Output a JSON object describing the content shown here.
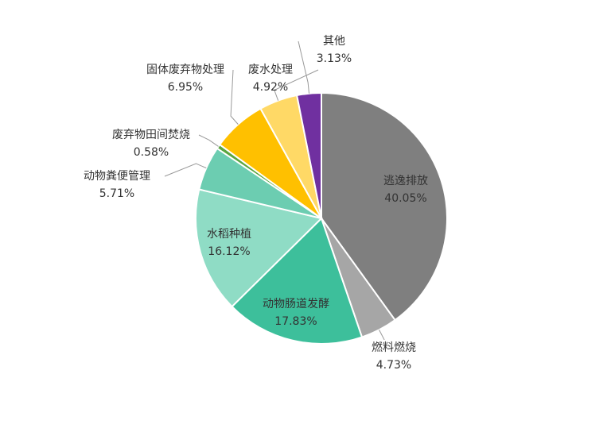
{
  "chart_data": {
    "type": "pie",
    "categories": [
      "逃逸排放",
      "燃料燃烧",
      "动物肠道发酵",
      "水稻种植",
      "动物粪便管理",
      "废弃物田间焚烧",
      "固体废弃物处理",
      "废水处理",
      "其他"
    ],
    "values": [
      40.05,
      4.73,
      17.83,
      16.12,
      5.71,
      0.58,
      6.95,
      4.92,
      3.13
    ],
    "value_labels": [
      "40.05%",
      "4.73%",
      "17.83%",
      "16.12%",
      "5.71%",
      "0.58%",
      "6.95%",
      "4.92%",
      "3.13%"
    ],
    "colors": [
      "#7f7f7f",
      "#a6a6a6",
      "#3dbf9b",
      "#8fdcc5",
      "#6ccdb1",
      "#5aa640",
      "#ffc000",
      "#ffd966",
      "#7030a0"
    ]
  }
}
